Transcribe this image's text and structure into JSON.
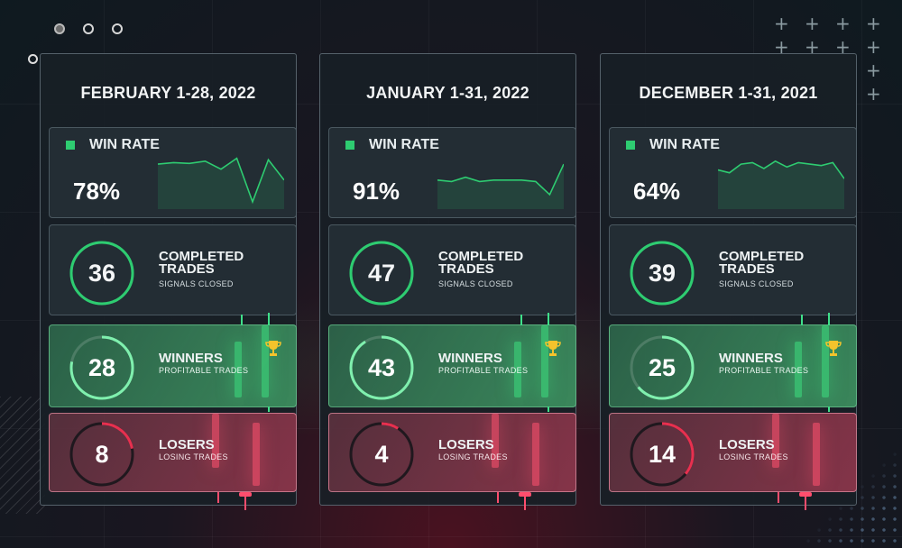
{
  "colors": {
    "green": "#2ecc71",
    "red": "#e8304f",
    "panel_border": "#a0b4be"
  },
  "panels": [
    {
      "title": "FEBRUARY 1-28, 2022",
      "win_rate_label": "WIN RATE",
      "win_rate": "78%",
      "sparkline": [
        62,
        64,
        63,
        66,
        55,
        70,
        10,
        68,
        40
      ],
      "completed": {
        "value": "36",
        "title_line1": "COMPLETED",
        "title_line2": "TRADES",
        "sub": "SIGNALS CLOSED",
        "ring_fraction": 1.0
      },
      "winners": {
        "value": "28",
        "title": "WINNERS",
        "sub": "PROFITABLE TRADES",
        "ring_fraction": 0.78
      },
      "losers": {
        "value": "8",
        "title": "LOSERS",
        "sub": "LOSING TRADES",
        "ring_fraction": 0.22
      }
    },
    {
      "title": "JANUARY 1-31, 2022",
      "win_rate_label": "WIN RATE",
      "win_rate": "91%",
      "sparkline": [
        40,
        38,
        44,
        38,
        40,
        40,
        40,
        38,
        20,
        62
      ],
      "completed": {
        "value": "47",
        "title_line1": "COMPLETED",
        "title_line2": "TRADES",
        "sub": "SIGNALS CLOSED",
        "ring_fraction": 1.0
      },
      "winners": {
        "value": "43",
        "title": "WINNERS",
        "sub": "PROFITABLE TRADES",
        "ring_fraction": 0.91
      },
      "losers": {
        "value": "4",
        "title": "LOSERS",
        "sub": "LOSING TRADES",
        "ring_fraction": 0.09
      }
    },
    {
      "title": "DECEMBER 1-31, 2021",
      "win_rate_label": "WIN RATE",
      "win_rate": "64%",
      "sparkline": [
        54,
        50,
        62,
        64,
        56,
        66,
        58,
        64,
        62,
        60,
        64,
        42
      ],
      "completed": {
        "value": "39",
        "title_line1": "COMPLETED",
        "title_line2": "TRADES",
        "sub": "SIGNALS CLOSED",
        "ring_fraction": 1.0
      },
      "winners": {
        "value": "25",
        "title": "WINNERS",
        "sub": "PROFITABLE TRADES",
        "ring_fraction": 0.64
      },
      "losers": {
        "value": "14",
        "title": "LOSERS",
        "sub": "LOSING TRADES",
        "ring_fraction": 0.36
      }
    }
  ]
}
